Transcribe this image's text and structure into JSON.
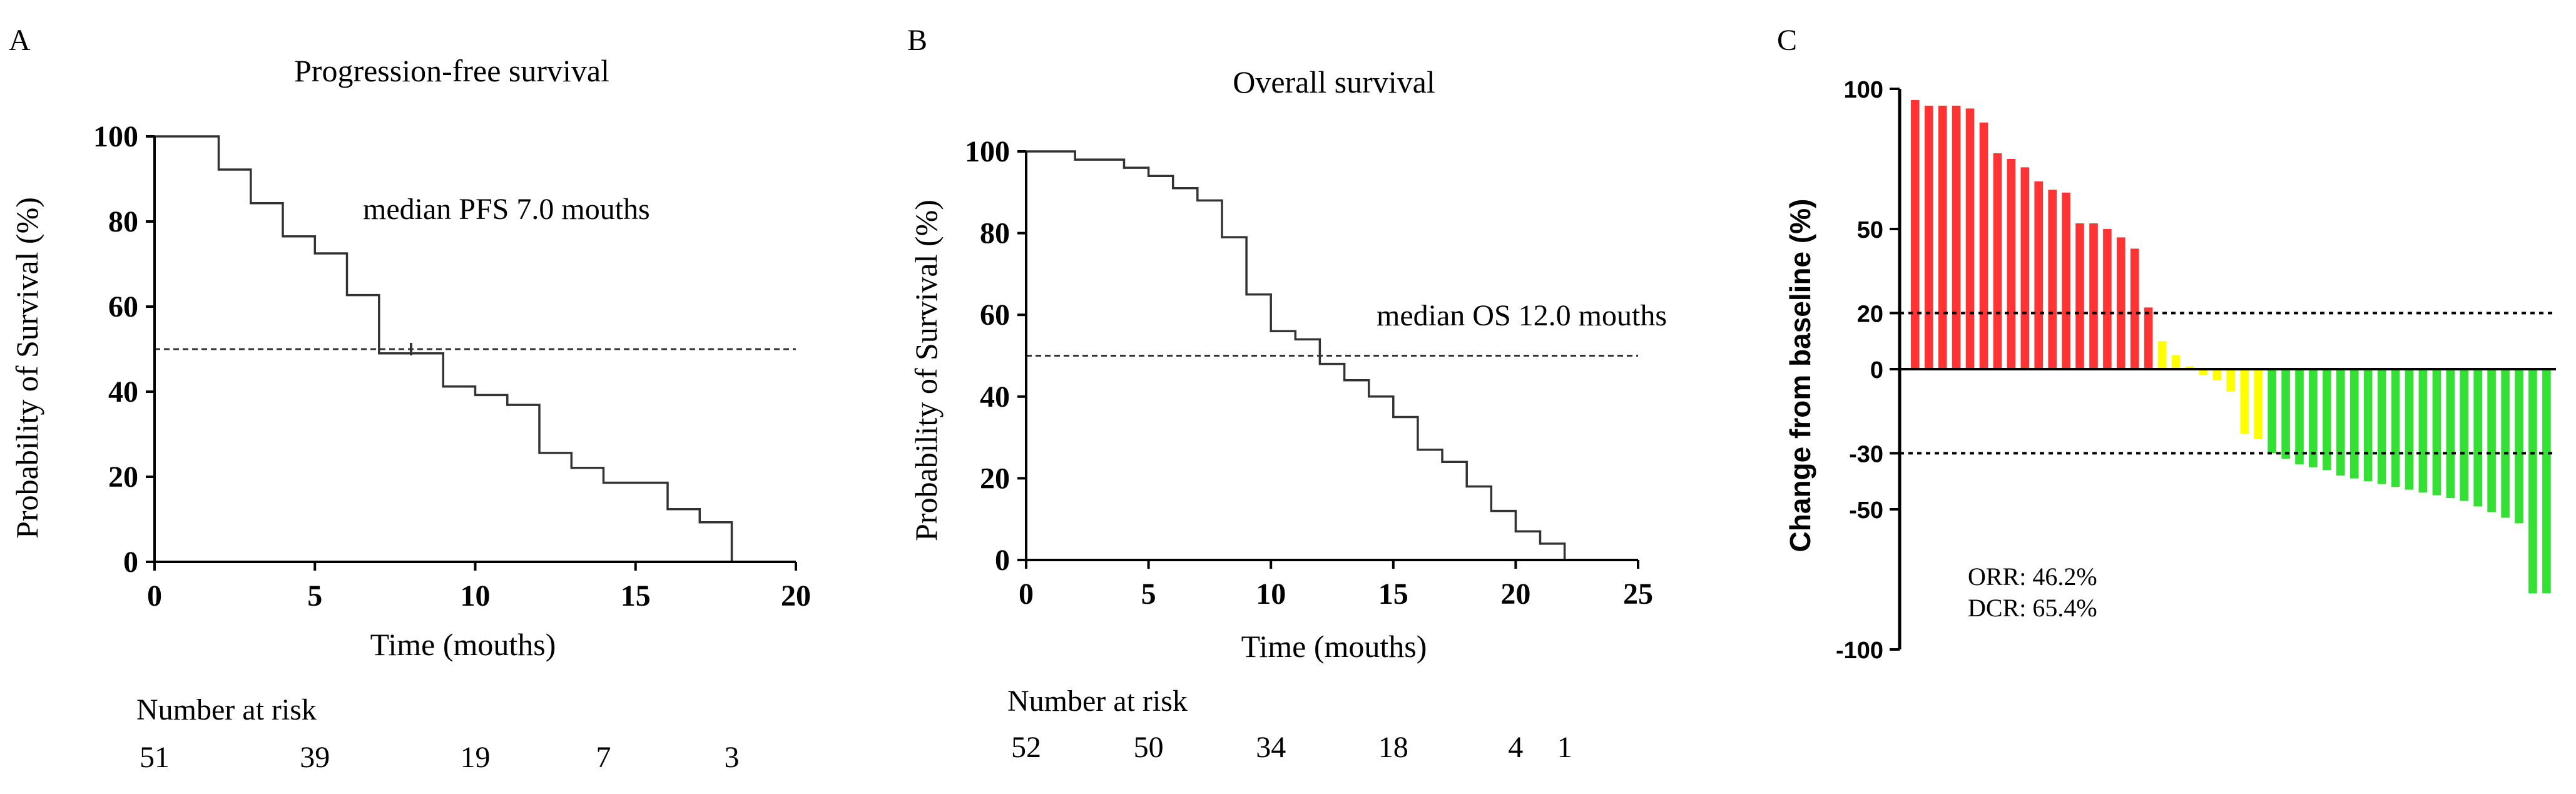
{
  "chart_data": [
    {
      "panel_label": "A",
      "type": "line",
      "title": "Progression-free survival",
      "xlabel": "Time (mouths)",
      "ylabel": "Probability of Survival (%)",
      "xlim": [
        0,
        20
      ],
      "ylim": [
        0,
        100
      ],
      "xticks": [
        "0",
        "5",
        "10",
        "15",
        "20"
      ],
      "yticks": [
        "0",
        "20",
        "40",
        "60",
        "80",
        "100"
      ],
      "reference_line": 50,
      "annotation": "median PFS  7.0 mouths",
      "steps": [
        [
          0,
          100
        ],
        [
          2,
          92.2
        ],
        [
          3,
          84.3
        ],
        [
          4,
          76.5
        ],
        [
          5,
          72.5
        ],
        [
          6,
          62.7
        ],
        [
          7,
          49
        ],
        [
          8,
          49
        ],
        [
          9,
          41.2
        ],
        [
          10,
          39.2
        ],
        [
          11,
          36.9
        ],
        [
          12,
          25.6
        ],
        [
          13,
          22.1
        ],
        [
          14,
          18.6
        ],
        [
          16,
          12.4
        ],
        [
          17,
          9.3
        ],
        [
          18,
          0
        ]
      ],
      "censor_marks": [
        [
          8,
          50
        ]
      ],
      "risk_title": "Number at risk",
      "risk_times": [
        0,
        5,
        10,
        14,
        18
      ],
      "risk_values": [
        "51",
        "39",
        "19",
        "7",
        "3"
      ]
    },
    {
      "panel_label": "B",
      "type": "line",
      "title": "Overall survival",
      "xlabel": "Time (mouths)",
      "ylabel": "Probability of Survival (%)",
      "xlim": [
        0,
        25
      ],
      "ylim": [
        0,
        100
      ],
      "xticks": [
        "0",
        "5",
        "10",
        "15",
        "20",
        "25"
      ],
      "yticks": [
        "0",
        "20",
        "40",
        "60",
        "80",
        "100"
      ],
      "reference_line": 50,
      "annotation": "median OS 12.0 mouths",
      "steps": [
        [
          0,
          100
        ],
        [
          2,
          98
        ],
        [
          4,
          96
        ],
        [
          5,
          94
        ],
        [
          6,
          91
        ],
        [
          7,
          88
        ],
        [
          8,
          79
        ],
        [
          9,
          65
        ],
        [
          10,
          56
        ],
        [
          11,
          54
        ],
        [
          12,
          48
        ],
        [
          13,
          44
        ],
        [
          14,
          40
        ],
        [
          15,
          35
        ],
        [
          16,
          27
        ],
        [
          17,
          24
        ],
        [
          18,
          18
        ],
        [
          19,
          12
        ],
        [
          20,
          7
        ],
        [
          21,
          4
        ],
        [
          22,
          0
        ]
      ],
      "censor_marks": [],
      "risk_title": "Number at risk",
      "risk_times": [
        0,
        5,
        10,
        15,
        20,
        22
      ],
      "risk_values": [
        "52",
        "50",
        "34",
        "18",
        "4",
        "1"
      ]
    },
    {
      "panel_label": "C",
      "type": "bar",
      "title": "",
      "xlabel": "",
      "ylabel": "Change from baseline (%)",
      "ylim": [
        -100,
        100
      ],
      "yticks": [
        "100",
        "50",
        "20",
        "0",
        "-30",
        "-50",
        "-100"
      ],
      "ytick_values": [
        100,
        50,
        20,
        0,
        -30,
        -50,
        -100
      ],
      "reference_lines": [
        20,
        -30
      ],
      "values": [
        96,
        94,
        94,
        94,
        93,
        88,
        77,
        75,
        72,
        67,
        64,
        63,
        52,
        52,
        50,
        47,
        43,
        22,
        10,
        5,
        1,
        -2,
        -4,
        -8,
        -23,
        -25,
        -30,
        -32,
        -34,
        -35,
        -36,
        -38,
        -39,
        -40,
        -41,
        -42,
        -43,
        -44,
        -45,
        -46,
        -47,
        -49,
        -51,
        -53,
        -55,
        -80,
        -80
      ],
      "colors": {
        "progressive": "#ff3333",
        "stable": "#ffff00",
        "partial_response": "#33e033"
      },
      "stats": [
        {
          "label": "ORR",
          "value": "46.2%"
        },
        {
          "label": "DCR",
          "value": "65.4%"
        }
      ]
    }
  ]
}
